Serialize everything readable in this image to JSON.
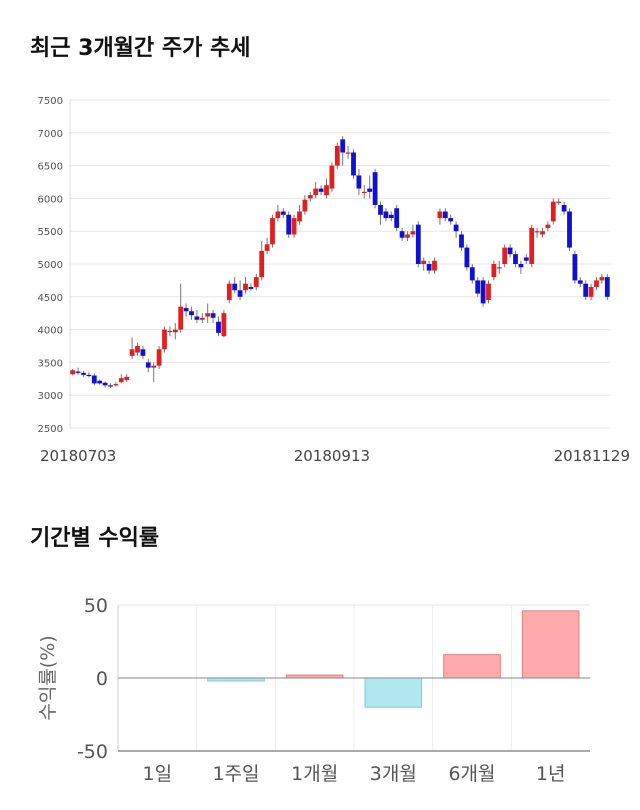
{
  "sections": {
    "price_title": "최근 3개월간 주가 추세",
    "return_title": "기간별 수익률"
  },
  "chart_data": [
    {
      "type": "candlestick",
      "ylim": [
        2500,
        7500
      ],
      "yticks": [
        2500,
        3000,
        3500,
        4000,
        4500,
        5000,
        5500,
        6000,
        6500,
        7000,
        7500
      ],
      "xtick_labels": [
        "20180703",
        "20180913",
        "20181129"
      ],
      "xtick_index": [
        0,
        48,
        98
      ],
      "colors": {
        "up": "#e02020",
        "down": "#1010d0",
        "wick": "#777777"
      },
      "candles": [
        [
          3320,
          3380,
          3300,
          3400
        ],
        [
          3360,
          3340,
          3310,
          3420
        ],
        [
          3340,
          3310,
          3280,
          3370
        ],
        [
          3310,
          3300,
          3270,
          3350
        ],
        [
          3300,
          3180,
          3150,
          3330
        ],
        [
          3220,
          3180,
          3160,
          3240
        ],
        [
          3190,
          3150,
          3120,
          3210
        ],
        [
          3150,
          3140,
          3110,
          3180
        ],
        [
          3150,
          3170,
          3130,
          3200
        ],
        [
          3200,
          3260,
          3180,
          3320
        ],
        [
          3230,
          3280,
          3200,
          3320
        ],
        [
          3600,
          3700,
          3550,
          3880
        ],
        [
          3650,
          3750,
          3600,
          3800
        ],
        [
          3700,
          3600,
          3550,
          3750
        ],
        [
          3500,
          3420,
          3350,
          3550
        ],
        [
          3420,
          3450,
          3200,
          3500
        ],
        [
          3450,
          3700,
          3400,
          3750
        ],
        [
          3700,
          4000,
          3650,
          4050
        ],
        [
          3980,
          3980,
          3900,
          4050
        ],
        [
          3960,
          4000,
          3850,
          4100
        ],
        [
          4000,
          4350,
          3950,
          4700
        ],
        [
          4330,
          4280,
          4200,
          4400
        ],
        [
          4280,
          4220,
          4150,
          4350
        ],
        [
          4200,
          4150,
          4100,
          4300
        ],
        [
          4150,
          4180,
          4100,
          4250
        ],
        [
          4200,
          4250,
          4100,
          4400
        ],
        [
          4250,
          4180,
          4100,
          4300
        ],
        [
          4120,
          3950,
          3900,
          4200
        ],
        [
          3900,
          4250,
          3880,
          4300
        ],
        [
          4450,
          4700,
          4400,
          4750
        ],
        [
          4700,
          4600,
          4550,
          4800
        ],
        [
          4600,
          4500,
          4450,
          4750
        ],
        [
          4600,
          4700,
          4550,
          4800
        ],
        [
          4650,
          4620,
          4600,
          4700
        ],
        [
          4650,
          4800,
          4600,
          4850
        ],
        [
          4800,
          5200,
          4750,
          5350
        ],
        [
          5200,
          5300,
          5150,
          5400
        ],
        [
          5300,
          5700,
          5250,
          5750
        ],
        [
          5700,
          5800,
          5650,
          5900
        ],
        [
          5800,
          5750,
          5700,
          5850
        ],
        [
          5750,
          5450,
          5400,
          5800
        ],
        [
          5450,
          5700,
          5400,
          5750
        ],
        [
          5650,
          5800,
          5600,
          5900
        ],
        [
          5800,
          5980,
          5750,
          6050
        ],
        [
          6000,
          6050,
          5950,
          6100
        ],
        [
          6050,
          6150,
          6000,
          6250
        ],
        [
          6150,
          6100,
          6050,
          6200
        ],
        [
          6050,
          6200,
          6000,
          6300
        ],
        [
          6150,
          6500,
          6100,
          6550
        ],
        [
          6500,
          6800,
          6450,
          6850
        ],
        [
          6900,
          6700,
          6500,
          6950
        ],
        [
          6700,
          6700,
          6600,
          6800
        ],
        [
          6700,
          6350,
          6300,
          6750
        ],
        [
          6350,
          6150,
          6050,
          6450
        ],
        [
          6100,
          6100,
          6000,
          6200
        ],
        [
          6150,
          6100,
          6000,
          6350
        ],
        [
          6400,
          5900,
          5850,
          6450
        ],
        [
          5900,
          5750,
          5600,
          5950
        ],
        [
          5800,
          5700,
          5650,
          5850
        ],
        [
          5750,
          5700,
          5650,
          5800
        ],
        [
          5850,
          5550,
          5500,
          5900
        ],
        [
          5500,
          5400,
          5350,
          5550
        ],
        [
          5400,
          5450,
          5350,
          5500
        ],
        [
          5450,
          5500,
          5400,
          5600
        ],
        [
          5600,
          5000,
          4950,
          5650
        ],
        [
          5000,
          5050,
          4900,
          5100
        ],
        [
          5000,
          4900,
          4850,
          5050
        ],
        [
          4900,
          5050,
          4850,
          5100
        ],
        [
          5700,
          5800,
          5600,
          5850
        ],
        [
          5800,
          5700,
          5650,
          5850
        ],
        [
          5700,
          5650,
          5600,
          5750
        ],
        [
          5600,
          5500,
          5400,
          5650
        ],
        [
          5450,
          5250,
          5200,
          5500
        ],
        [
          5250,
          4950,
          4900,
          5300
        ],
        [
          4950,
          4750,
          4700,
          5000
        ],
        [
          4750,
          4550,
          4500,
          4800
        ],
        [
          4750,
          4400,
          4350,
          4800
        ],
        [
          4450,
          4700,
          4400,
          4750
        ],
        [
          4800,
          5000,
          4750,
          5050
        ],
        [
          4950,
          4950,
          4850,
          5050
        ],
        [
          5000,
          5250,
          4950,
          5300
        ],
        [
          5250,
          5150,
          5100,
          5300
        ],
        [
          5150,
          5000,
          4950,
          5200
        ],
        [
          5000,
          4950,
          4850,
          5050
        ],
        [
          5100,
          5050,
          5000,
          5150
        ],
        [
          5000,
          5550,
          4950,
          5600
        ],
        [
          5500,
          5500,
          5400,
          5550
        ],
        [
          5450,
          5500,
          5400,
          5550
        ],
        [
          5550,
          5600,
          5500,
          5650
        ],
        [
          5650,
          5950,
          5600,
          6000
        ],
        [
          5950,
          5950,
          5900,
          6000
        ],
        [
          5900,
          5800,
          5750,
          5950
        ],
        [
          5800,
          5250,
          5200,
          5850
        ],
        [
          5150,
          4750,
          4700,
          5200
        ],
        [
          4750,
          4700,
          4650,
          4800
        ],
        [
          4700,
          4500,
          4450,
          4750
        ],
        [
          4500,
          4650,
          4450,
          4700
        ],
        [
          4650,
          4750,
          4600,
          4800
        ],
        [
          4750,
          4800,
          4700,
          4850
        ],
        [
          4800,
          4500,
          4450,
          4850
        ]
      ]
    },
    {
      "type": "bar",
      "categories": [
        "1일",
        "1주일",
        "1개월",
        "3개월",
        "6개월",
        "1년"
      ],
      "values": [
        0,
        -2,
        2,
        -20,
        16,
        46
      ],
      "ylabel": "수익률(%)",
      "ylim": [
        -50,
        50
      ],
      "yticks": [
        -50,
        0,
        50
      ],
      "colors": {
        "positive": "#ffaaaa",
        "positive_stroke": "#e08080",
        "negative": "#b0e8f0",
        "negative_stroke": "#7ccad8"
      }
    }
  ]
}
